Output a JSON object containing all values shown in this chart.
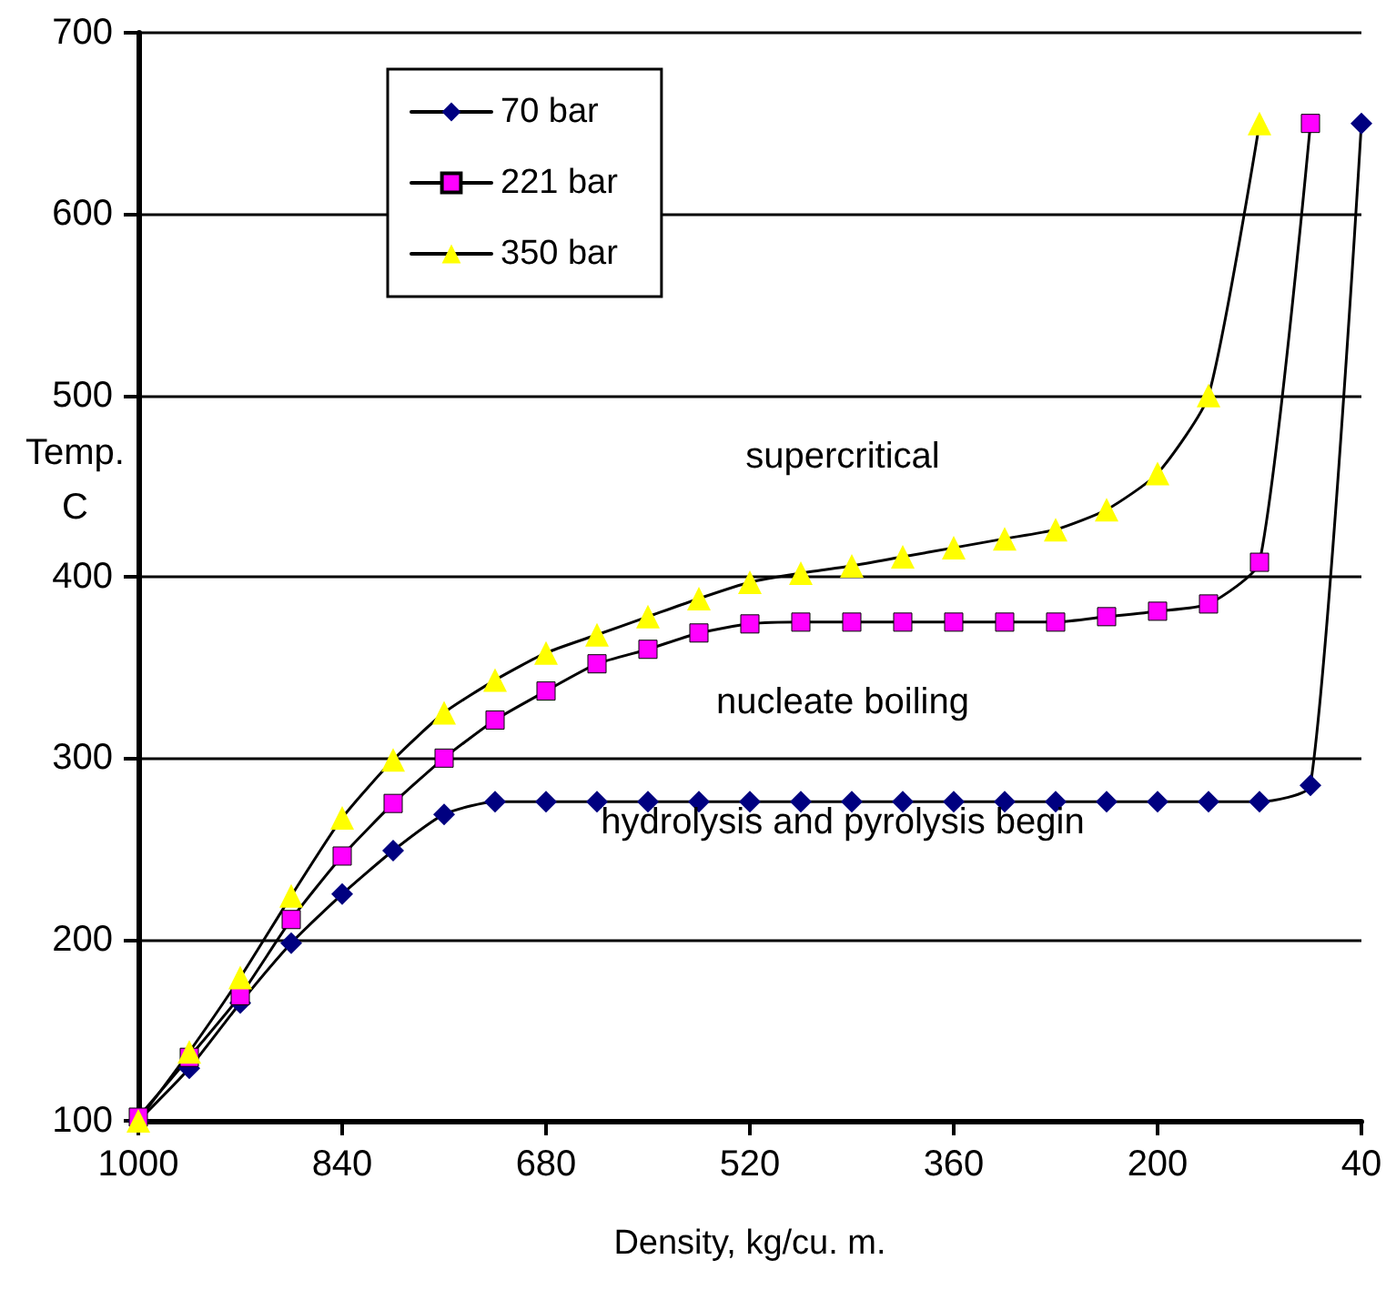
{
  "chart_data": {
    "type": "line",
    "xlabel": "Density, kg/cu. m.",
    "ylabel": "Temp. C",
    "x": [
      1000,
      960,
      920,
      880,
      840,
      800,
      760,
      720,
      680,
      640,
      600,
      560,
      520,
      480,
      440,
      400,
      360,
      320,
      280,
      240,
      200,
      160,
      120,
      80,
      40
    ],
    "series": [
      {
        "name": "70 bar",
        "color": "#000080",
        "marker": "diamond",
        "values": [
          100,
          129,
          165,
          198,
          225,
          249,
          269,
          276,
          276,
          276,
          276,
          276,
          276,
          276,
          276,
          276,
          276,
          276,
          276,
          276,
          276,
          276,
          276,
          285,
          650
        ]
      },
      {
        "name": "221 bar",
        "color": "#ff00ff",
        "marker": "square",
        "values": [
          102,
          135,
          169,
          211,
          246,
          275,
          300,
          321,
          337,
          352,
          360,
          369,
          374,
          375,
          375,
          375,
          375,
          375,
          375,
          378,
          381,
          385,
          408,
          650,
          null
        ]
      },
      {
        "name": "350 bar",
        "color": "#ffff00",
        "marker": "triangle",
        "values": [
          100,
          138,
          179,
          224,
          267,
          299,
          325,
          343,
          358,
          368,
          378,
          388,
          397,
          402,
          406,
          411,
          416,
          421,
          426,
          437,
          457,
          500,
          650,
          null,
          null
        ]
      }
    ],
    "xlim": [
      1000,
      40
    ],
    "xticks": [
      1000,
      840,
      680,
      520,
      360,
      200,
      40
    ],
    "ylim": [
      100,
      700
    ],
    "yticks": [
      100,
      200,
      300,
      400,
      500,
      600,
      700
    ],
    "grid": "y",
    "legend": "top left",
    "line_style": "solid",
    "annotations": [
      "supercritical",
      "nucleate boiling",
      "hydrolysis and pyrolysis begin"
    ]
  }
}
